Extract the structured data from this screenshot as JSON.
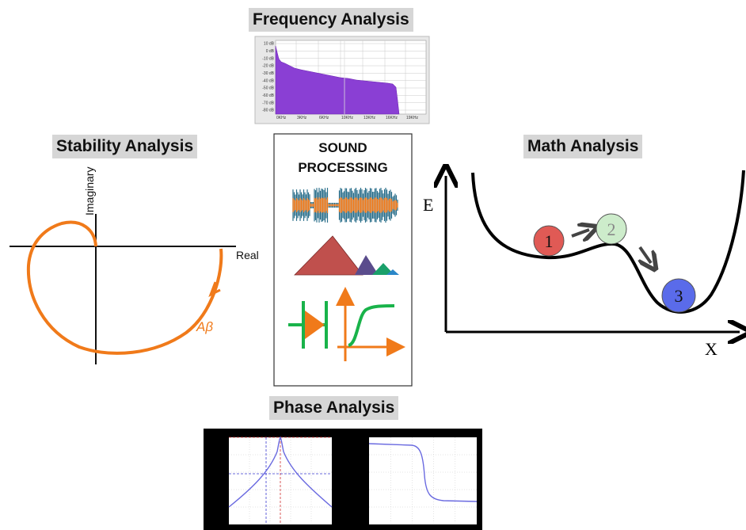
{
  "titles": {
    "frequency": "Frequency Analysis",
    "stability": "Stability Analysis",
    "math": "Math Analysis",
    "phase": "Phase Analysis"
  },
  "center_panel": {
    "line1": "SOUND",
    "line2": "PROCESSING"
  },
  "stability": {
    "y_axis_label": "Imaginary",
    "x_axis_label": "Real",
    "curve_label": "Aβ"
  },
  "math": {
    "y_axis_label": "E",
    "x_axis_label": "X",
    "balls": [
      {
        "label": "1",
        "color": "#e05a55"
      },
      {
        "label": "2",
        "color": "#cdeccb"
      },
      {
        "label": "3",
        "color": "#5a6bea"
      }
    ]
  },
  "spectrum": {
    "db_labels": [
      "10 dB",
      "0 dB",
      "-10 dB",
      "-20 dB",
      "-30 dB",
      "-40 dB",
      "-50 dB",
      "-60 dB",
      "-70 dB",
      "-80 dB"
    ],
    "freq_labels": [
      "0KHz",
      "3KHz",
      "6KHz",
      "10KHz",
      "13KHz",
      "16KHz",
      "19KHz"
    ],
    "fill_color": "#8a3fd4"
  },
  "colors": {
    "orange": "#f07a1a",
    "green": "#19b34a",
    "teal": "#2a6f8a",
    "phase_line": "#6a6ae0"
  }
}
